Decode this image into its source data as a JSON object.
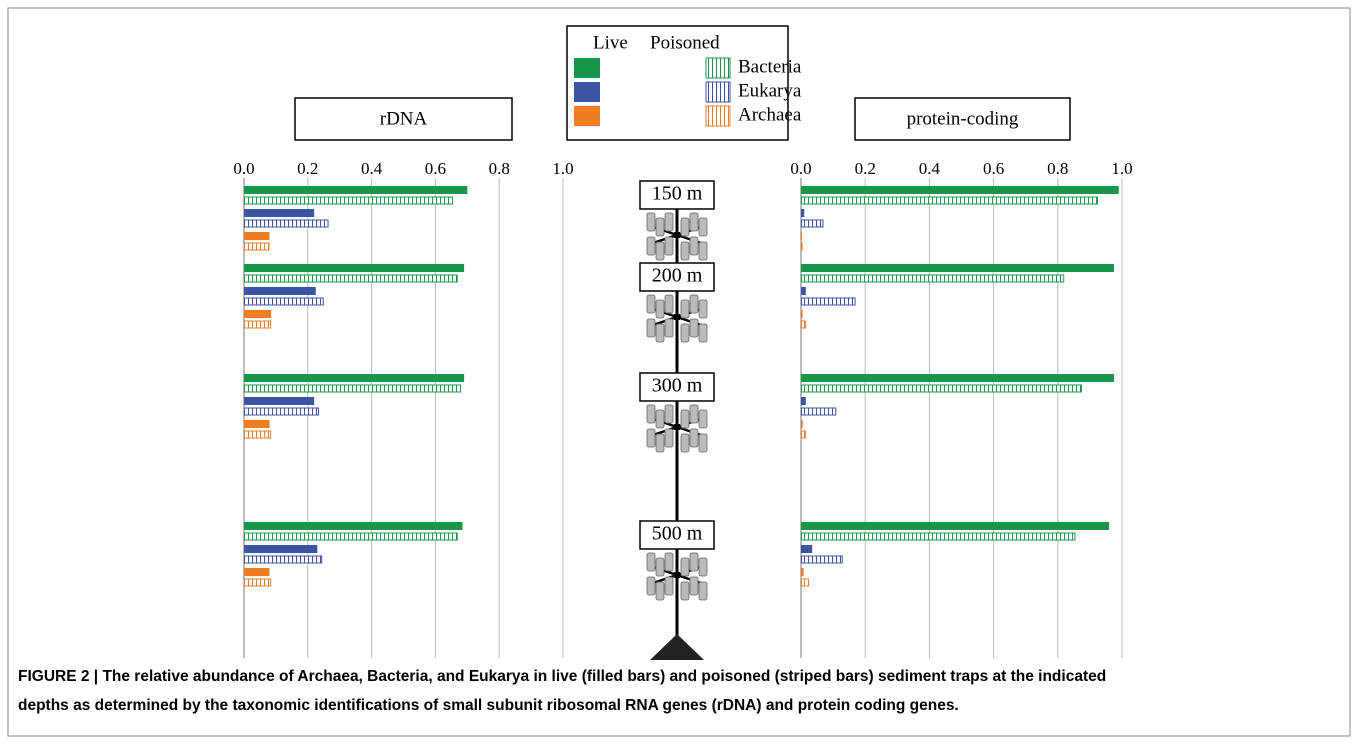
{
  "legend": {
    "columns": [
      "Live",
      "Poisoned"
    ],
    "series": [
      {
        "name": "Bacteria",
        "color": "#17964a"
      },
      {
        "name": "Eukarya",
        "color": "#3c54a4"
      },
      {
        "name": "Archaea",
        "color": "#ee7d23"
      }
    ]
  },
  "depths": [
    "150 m",
    "200 m",
    "300 m",
    "500 m"
  ],
  "chart_data": [
    {
      "type": "bar",
      "title": "rDNA",
      "xlim": [
        0,
        1
      ],
      "xticks": [
        {
          "value": 0,
          "label": "0.0"
        },
        0.2,
        0.4,
        0.6,
        0.8,
        {
          "value": 1,
          "label": "1.0"
        }
      ],
      "grid": true,
      "series": [
        {
          "live": [
            0.7,
            0.69,
            0.69,
            0.685
          ],
          "poisoned": [
            0.655,
            0.67,
            0.68,
            0.67
          ]
        },
        {
          "live": [
            0.22,
            0.225,
            0.22,
            0.23
          ],
          "poisoned": [
            0.265,
            0.25,
            0.235,
            0.245
          ]
        },
        {
          "live": [
            0.08,
            0.085,
            0.08,
            0.08
          ],
          "poisoned": [
            0.08,
            0.085,
            0.085,
            0.085
          ]
        }
      ]
    },
    {
      "type": "bar",
      "title": "protein-coding",
      "xlim": [
        0,
        1
      ],
      "xticks": [
        {
          "value": 0,
          "label": "0.0"
        },
        0.2,
        0.4,
        0.6,
        0.8,
        {
          "value": 1,
          "label": "1.0"
        }
      ],
      "grid": true,
      "series": [
        {
          "live": [
            0.99,
            0.975,
            0.975,
            0.96
          ],
          "poisoned": [
            0.925,
            0.82,
            0.875,
            0.855
          ]
        },
        {
          "live": [
            0.01,
            0.015,
            0.015,
            0.035
          ],
          "poisoned": [
            0.07,
            0.17,
            0.11,
            0.13
          ]
        },
        {
          "live": [
            0.003,
            0.005,
            0.005,
            0.008
          ],
          "poisoned": [
            0.005,
            0.015,
            0.015,
            0.025
          ]
        }
      ]
    }
  ],
  "caption": {
    "label": "FIGURE 2 | ",
    "line1": "The relative abundance of Archaea, Bacteria, and Eukarya in live (filled bars) and poisoned (striped bars) sediment traps at the indicated",
    "line2": "depths as determined by the taxonomic identifications of small subunit ribosomal RNA genes (rDNA) and protein coding genes."
  }
}
